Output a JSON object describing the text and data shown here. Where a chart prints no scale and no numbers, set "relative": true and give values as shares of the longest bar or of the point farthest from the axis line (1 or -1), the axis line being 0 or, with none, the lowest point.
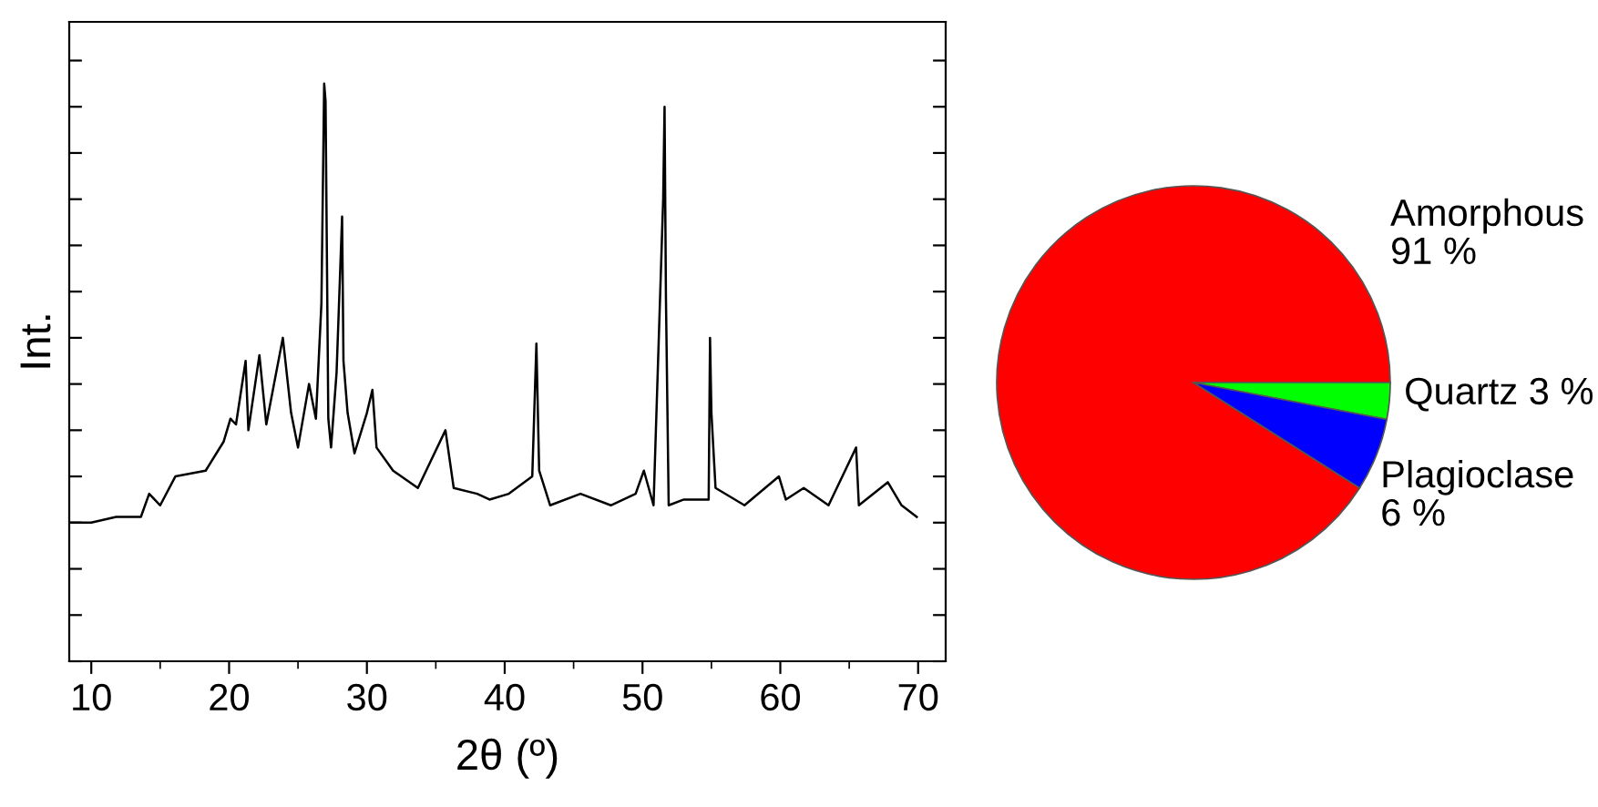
{
  "chart_data": [
    {
      "type": "line",
      "relative": true,
      "xlabel": "2θ (º)",
      "ylabel": "Int.",
      "xlim": [
        8.4,
        72
      ],
      "xticks": [
        10,
        20,
        30,
        40,
        50,
        60,
        70
      ],
      "tick_labels": "x",
      "grid": false,
      "legend": false,
      "series": [
        {
          "color": "#000000",
          "x": [
            8.55,
            10.0,
            11.8,
            13.6,
            14.2,
            15.0,
            16.1,
            18.3,
            19.6,
            20.1,
            20.5,
            21.2,
            21.4,
            22.2,
            22.7,
            23.9,
            24.5,
            25.0,
            25.8,
            26.3,
            26.7,
            26.9,
            27.0,
            27.2,
            27.4,
            27.8,
            28.2,
            28.3,
            28.6,
            29.1,
            30.0,
            30.4,
            30.7,
            31.9,
            33.7,
            35.7,
            36.3,
            38.0,
            38.9,
            40.3,
            42.0,
            42.3,
            42.5,
            43.3,
            45.5,
            47.7,
            49.5,
            50.1,
            50.8,
            51.5,
            51.6,
            51.7,
            51.9,
            53.0,
            54.8,
            54.9,
            55.0,
            55.3,
            57.4,
            59.9,
            60.4,
            61.7,
            63.5,
            65.5,
            65.7,
            67.8,
            68.8,
            69.9
          ],
          "values": [
            0.24,
            0.24,
            0.25,
            0.25,
            0.29,
            0.27,
            0.32,
            0.33,
            0.38,
            0.42,
            0.41,
            0.52,
            0.4,
            0.53,
            0.41,
            0.56,
            0.43,
            0.37,
            0.48,
            0.42,
            0.62,
            1.0,
            0.97,
            0.42,
            0.37,
            0.5,
            0.77,
            0.52,
            0.43,
            0.36,
            0.43,
            0.47,
            0.37,
            0.33,
            0.3,
            0.4,
            0.3,
            0.29,
            0.28,
            0.29,
            0.32,
            0.55,
            0.33,
            0.27,
            0.29,
            0.27,
            0.29,
            0.33,
            0.27,
            0.8,
            0.96,
            0.63,
            0.27,
            0.28,
            0.28,
            0.56,
            0.43,
            0.3,
            0.27,
            0.32,
            0.28,
            0.3,
            0.27,
            0.37,
            0.27,
            0.31,
            0.27,
            0.25
          ]
        }
      ]
    },
    {
      "type": "pie",
      "categories": [
        "Amorphous",
        "Quartz",
        "Plagioclase"
      ],
      "values": [
        91,
        3,
        6
      ],
      "value_labels": [
        "91 %",
        "3 %",
        "6 %"
      ],
      "colors": [
        "#ff0000",
        "#00ff00",
        "#0000ff"
      ]
    }
  ]
}
